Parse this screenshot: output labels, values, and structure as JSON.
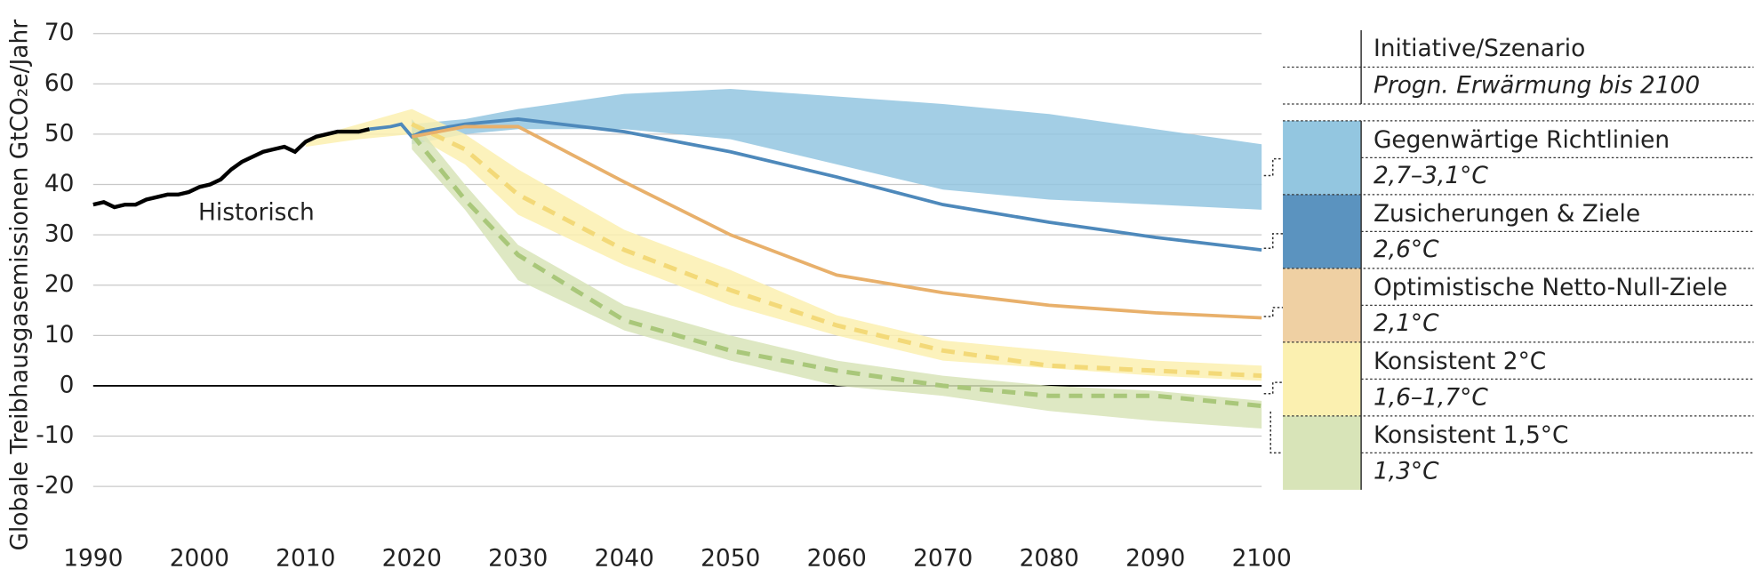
{
  "chart_data": {
    "type": "line",
    "ylabel": "Globale Treibhausgasemissionen GtCO₂e/Jahr",
    "xlim": [
      1990,
      2100
    ],
    "xticks": [
      1990,
      2000,
      2010,
      2020,
      2030,
      2040,
      2050,
      2060,
      2070,
      2080,
      2090,
      2100
    ],
    "ylim": [
      -20,
      70
    ],
    "yticks": [
      -20,
      -10,
      0,
      10,
      20,
      30,
      40,
      50,
      60,
      70
    ],
    "grid": true,
    "legend_header": [
      "Initiative/Szenario",
      "Progn. Erwärmung bis 2100"
    ],
    "historical": {
      "name": "Historisch",
      "color": "#000000",
      "x": [
        1990,
        1991,
        1992,
        1993,
        1994,
        1995,
        1996,
        1997,
        1998,
        1999,
        2000,
        2001,
        2002,
        2003,
        2004,
        2005,
        2006,
        2007,
        2008,
        2009,
        2010,
        2011,
        2012,
        2013,
        2014,
        2015,
        2016
      ],
      "values": [
        36,
        36.5,
        35.5,
        36,
        36,
        37,
        37.5,
        38,
        38,
        38.5,
        39.5,
        40,
        41,
        43,
        44.5,
        45.5,
        46.5,
        47,
        47.5,
        46.5,
        48.5,
        49.5,
        50,
        50.5,
        50.5,
        50.5,
        51
      ]
    },
    "series": [
      {
        "name": "Gegenwärtige Richtlinien",
        "warming": "2,7–3,1°C",
        "color": "#93c6e0",
        "x": [
          2020,
          2025,
          2030,
          2040,
          2050,
          2060,
          2070,
          2080,
          2090,
          2100
        ],
        "lower": [
          48,
          50,
          51,
          51,
          49,
          44,
          39,
          37,
          36,
          35
        ],
        "upper": [
          52,
          53,
          55,
          58,
          59,
          57.5,
          56,
          54,
          51,
          48
        ]
      },
      {
        "name": "Zusicherungen & Ziele",
        "warming": "2,6°C",
        "color": "#5b93bf",
        "line_color": "#4e89bb",
        "x": [
          2016,
          2018,
          2019,
          2020,
          2021,
          2025,
          2030,
          2040,
          2050,
          2060,
          2070,
          2080,
          2090,
          2100
        ],
        "values": [
          51,
          51.5,
          52,
          49.5,
          50.5,
          52,
          53,
          50.5,
          46.5,
          41.5,
          36,
          32.5,
          29.5,
          27
        ]
      },
      {
        "name": "Optimistische Netto-Null-Ziele",
        "warming": "2,1°C",
        "color": "#efd0a3",
        "line_color": "#e8b06b",
        "x": [
          2020,
          2025,
          2030,
          2035,
          2040,
          2050,
          2060,
          2070,
          2080,
          2090,
          2100
        ],
        "values": [
          49.5,
          51.5,
          51.5,
          46,
          40.5,
          30,
          22,
          18.5,
          16,
          14.5,
          13.5
        ]
      },
      {
        "name": "Konsistent 2°C",
        "warming": "1,6–1,7°C",
        "color": "#fbf0b0",
        "line_color": "#f3d978",
        "x": [
          2010,
          2015,
          2020,
          2025,
          2030,
          2040,
          2050,
          2060,
          2070,
          2080,
          2090,
          2100
        ],
        "lower": [
          47.5,
          49,
          50,
          44,
          34,
          24,
          16,
          10,
          5,
          3.5,
          2,
          1
        ],
        "upper": [
          49,
          52,
          55,
          50,
          43,
          31,
          23,
          14,
          9,
          7,
          5,
          4
        ],
        "median": [
          null,
          null,
          52,
          47,
          38,
          27,
          19,
          12,
          7,
          4,
          3,
          2
        ]
      },
      {
        "name": "Konsistent 1,5°C",
        "warming": "1,3°C",
        "color": "#d8e4b8",
        "line_color": "#a9c77a",
        "x": [
          2020,
          2025,
          2030,
          2040,
          2050,
          2060,
          2070,
          2080,
          2090,
          2100
        ],
        "lower": [
          47,
          35,
          21,
          11,
          5,
          0,
          -2,
          -5,
          -7,
          -8.5
        ],
        "upper": [
          53,
          40,
          28,
          16,
          10,
          5,
          2,
          0,
          -1,
          -3
        ],
        "median": [
          50,
          37,
          26,
          13,
          7,
          3,
          0,
          -2,
          -2,
          -4
        ]
      }
    ]
  }
}
